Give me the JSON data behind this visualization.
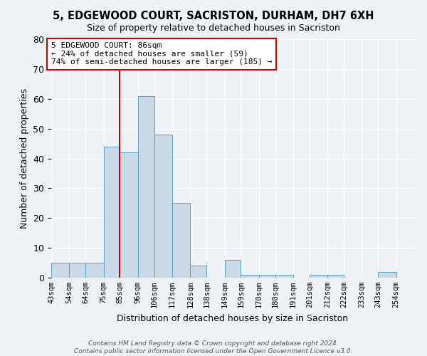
{
  "title": "5, EDGEWOOD COURT, SACRISTON, DURHAM, DH7 6XH",
  "subtitle": "Size of property relative to detached houses in Sacriston",
  "xlabel": "Distribution of detached houses by size in Sacriston",
  "ylabel": "Number of detached properties",
  "bin_labels": [
    "43sqm",
    "54sqm",
    "64sqm",
    "75sqm",
    "85sqm",
    "96sqm",
    "106sqm",
    "117sqm",
    "128sqm",
    "138sqm",
    "149sqm",
    "159sqm",
    "170sqm",
    "180sqm",
    "191sqm",
    "201sqm",
    "212sqm",
    "222sqm",
    "233sqm",
    "243sqm",
    "254sqm"
  ],
  "bar_heights": [
    5,
    5,
    5,
    44,
    42,
    61,
    48,
    25,
    4,
    0,
    6,
    1,
    1,
    1,
    0,
    1,
    1,
    0,
    0,
    2,
    0
  ],
  "bar_color": "#c9d9e8",
  "bar_edge_color": "#5a9fc9",
  "vline_x": 85,
  "vline_color": "#cc0000",
  "annotation_text": "5 EDGEWOOD COURT: 86sqm\n← 24% of detached houses are smaller (59)\n74% of semi-detached houses are larger (185) →",
  "annotation_box_color": "#ffffff",
  "annotation_box_edge": "#cc0000",
  "ylim": [
    0,
    80
  ],
  "yticks": [
    0,
    10,
    20,
    30,
    40,
    50,
    60,
    70,
    80
  ],
  "footer": "Contains HM Land Registry data © Crown copyright and database right 2024.\nContains public sector information licensed under the Open Government Licence v3.0.",
  "bg_color": "#eef2f7",
  "plot_bg_color": "#eef2f7",
  "title_fontsize": 10.5,
  "subtitle_fontsize": 9
}
